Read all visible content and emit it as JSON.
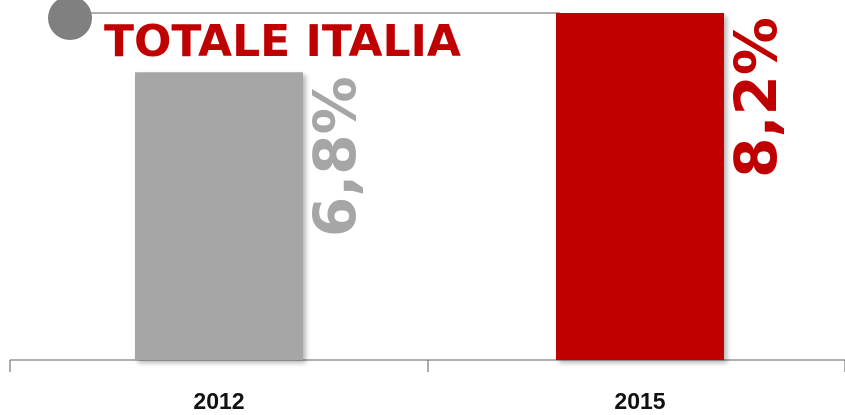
{
  "colors": {
    "title": "#c00000",
    "bar_2012": "#a6a6a6",
    "bar_2015": "#c00000",
    "label_2012": "#a6a6a6",
    "label_2015": "#c00000",
    "axis": "#7f7f7f",
    "marker": "#808080"
  },
  "chart_data": {
    "type": "bar",
    "title": "TOTALE ITALIA",
    "categories": [
      "2012",
      "2015"
    ],
    "values": [
      6.8,
      8.2
    ],
    "value_labels": [
      "6,8%",
      "8,2%"
    ],
    "unit": "%",
    "ylim": [
      0,
      8.2
    ],
    "grid": false,
    "legend": "none",
    "xlabel": "",
    "ylabel": ""
  }
}
